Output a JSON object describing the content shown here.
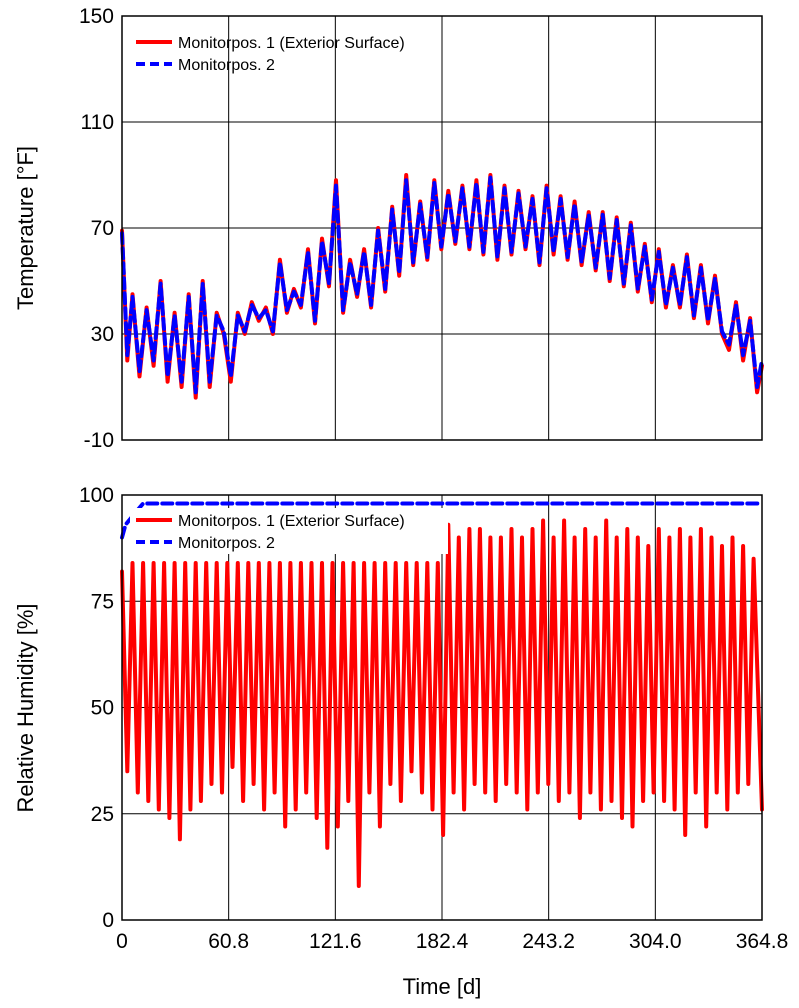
{
  "colors": {
    "series1": "#ff0000",
    "series2": "#0000ff",
    "grid": "#000000",
    "background": "#ffffff"
  },
  "xlabel": "Time [d]",
  "chart_data": [
    {
      "type": "line",
      "xlabel": "",
      "ylabel": "Temperature [°F]",
      "xlim": [
        0,
        364.8
      ],
      "ylim": [
        -10,
        150
      ],
      "xticks": [
        "0",
        "60.8",
        "121.6",
        "182.4",
        "243.2",
        "304.0",
        "364.8"
      ],
      "yticks": [
        "-10",
        "30",
        "70",
        "110",
        "150"
      ],
      "grid": true,
      "legend_position": "top-left",
      "x": [
        0,
        3,
        6,
        10,
        14,
        18,
        22,
        26,
        30,
        34,
        38,
        42,
        46,
        50,
        54,
        58,
        62,
        66,
        70,
        74,
        78,
        82,
        86,
        90,
        94,
        98,
        102,
        106,
        110,
        114,
        118,
        122,
        126,
        130,
        134,
        138,
        142,
        146,
        150,
        154,
        158,
        162,
        166,
        170,
        174,
        178,
        182,
        186,
        190,
        194,
        198,
        202,
        206,
        210,
        214,
        218,
        222,
        226,
        230,
        234,
        238,
        242,
        246,
        250,
        254,
        258,
        262,
        266,
        270,
        274,
        278,
        282,
        286,
        290,
        294,
        298,
        302,
        306,
        310,
        314,
        318,
        322,
        326,
        330,
        334,
        338,
        342,
        346,
        350,
        354,
        358,
        362,
        364.8
      ],
      "series": [
        {
          "name": "Monitorpos. 1 (Exterior Surface)",
          "color": "#ff0000",
          "style": "solid",
          "values": [
            69,
            20,
            45,
            14,
            40,
            18,
            50,
            12,
            38,
            10,
            45,
            6,
            50,
            10,
            38,
            30,
            12,
            38,
            30,
            42,
            35,
            40,
            30,
            58,
            38,
            47,
            40,
            62,
            34,
            66,
            48,
            88,
            38,
            58,
            44,
            62,
            40,
            70,
            46,
            78,
            52,
            90,
            56,
            80,
            58,
            88,
            62,
            84,
            64,
            86,
            62,
            88,
            60,
            90,
            58,
            86,
            60,
            84,
            62,
            82,
            56,
            86,
            60,
            82,
            58,
            80,
            56,
            76,
            54,
            76,
            50,
            74,
            48,
            72,
            46,
            64,
            42,
            62,
            40,
            56,
            40,
            60,
            36,
            56,
            34,
            52,
            30,
            24,
            42,
            20,
            36,
            8,
            18
          ]
        },
        {
          "name": "Monitorpos. 2",
          "color": "#0000ff",
          "style": "dashed",
          "values": [
            68,
            22,
            44,
            16,
            39,
            20,
            49,
            14,
            37,
            12,
            44,
            8,
            49,
            12,
            37,
            31,
            14,
            37,
            31,
            41,
            36,
            39,
            31,
            57,
            39,
            46,
            41,
            61,
            35,
            65,
            49,
            86,
            39,
            57,
            45,
            61,
            41,
            69,
            47,
            77,
            53,
            88,
            57,
            79,
            59,
            87,
            63,
            83,
            65,
            85,
            63,
            87,
            61,
            89,
            59,
            85,
            61,
            83,
            63,
            81,
            57,
            85,
            61,
            81,
            59,
            79,
            57,
            75,
            55,
            75,
            51,
            73,
            49,
            71,
            47,
            63,
            43,
            61,
            41,
            55,
            41,
            59,
            37,
            55,
            35,
            51,
            31,
            26,
            41,
            22,
            35,
            10,
            20
          ]
        }
      ]
    },
    {
      "type": "line",
      "xlabel": "Time [d]",
      "ylabel": "Relative Humidity [%]",
      "xlim": [
        0,
        364.8
      ],
      "ylim": [
        0,
        100
      ],
      "xticks": [
        "0",
        "60.8",
        "121.6",
        "182.4",
        "243.2",
        "304.0",
        "364.8"
      ],
      "yticks": [
        "0",
        "25",
        "50",
        "75",
        "100"
      ],
      "grid": true,
      "legend_position": "top-left",
      "series": [
        {
          "name": "Monitorpos. 1 (Exterior Surface)",
          "color": "#ff0000",
          "style": "solid",
          "x": [
            0,
            3,
            6,
            9,
            12,
            15,
            18,
            21,
            24,
            27,
            30,
            33,
            36,
            39,
            42,
            45,
            48,
            51,
            54,
            57,
            60,
            63,
            66,
            69,
            72,
            75,
            78,
            81,
            84,
            87,
            90,
            93,
            96,
            99,
            102,
            105,
            108,
            111,
            114,
            117,
            120,
            123,
            126,
            129,
            132,
            135,
            138,
            141,
            144,
            147,
            150,
            153,
            156,
            159,
            162,
            165,
            168,
            171,
            174,
            177,
            180,
            183,
            186,
            189,
            192,
            195,
            198,
            201,
            204,
            207,
            210,
            213,
            216,
            219,
            222,
            225,
            228,
            231,
            234,
            237,
            240,
            243,
            246,
            249,
            252,
            255,
            258,
            261,
            264,
            267,
            270,
            273,
            276,
            279,
            282,
            285,
            288,
            291,
            294,
            297,
            300,
            303,
            306,
            309,
            312,
            315,
            318,
            321,
            324,
            327,
            330,
            333,
            336,
            339,
            342,
            345,
            348,
            351,
            354,
            357,
            360,
            364.8
          ],
          "values": [
            82,
            35,
            84,
            30,
            84,
            28,
            84,
            26,
            84,
            24,
            84,
            19,
            84,
            26,
            84,
            28,
            84,
            32,
            84,
            30,
            84,
            36,
            84,
            28,
            84,
            32,
            84,
            26,
            84,
            30,
            84,
            22,
            84,
            26,
            84,
            30,
            84,
            24,
            84,
            17,
            84,
            22,
            84,
            28,
            84,
            8,
            84,
            30,
            84,
            22,
            84,
            32,
            84,
            28,
            84,
            35,
            84,
            30,
            84,
            26,
            84,
            20,
            93,
            30,
            90,
            26,
            92,
            32,
            92,
            30,
            90,
            28,
            90,
            32,
            92,
            30,
            90,
            26,
            92,
            30,
            94,
            32,
            90,
            28,
            94,
            30,
            90,
            24,
            92,
            30,
            90,
            26,
            94,
            28,
            90,
            24,
            92,
            22,
            90,
            28,
            88,
            30,
            92,
            28,
            90,
            26,
            92,
            20,
            90,
            30,
            92,
            22,
            90,
            30,
            88,
            26,
            90,
            30,
            88,
            32,
            85,
            26
          ]
        },
        {
          "name": "Monitorpos. 2",
          "color": "#0000ff",
          "style": "dashed",
          "x": [
            0,
            2,
            4,
            6,
            8,
            10,
            12,
            14,
            16,
            18,
            20,
            22,
            24,
            26,
            28,
            30,
            32,
            34,
            36,
            38,
            40,
            42,
            44,
            46,
            48,
            50,
            52,
            54,
            56,
            58,
            60,
            62,
            64,
            66,
            68,
            70,
            72,
            74,
            76,
            78,
            80,
            82,
            84,
            86,
            88,
            90,
            92,
            94,
            96,
            98,
            100,
            102,
            104,
            106,
            108,
            110,
            112,
            114,
            116,
            118,
            120,
            122,
            124,
            126,
            128,
            130,
            132,
            134,
            136,
            138,
            140,
            142,
            144,
            146,
            148,
            150,
            152,
            154,
            156,
            158,
            160,
            162,
            164,
            166,
            168,
            170,
            172,
            174,
            176,
            178,
            180,
            182,
            184,
            186,
            188,
            190,
            192,
            194,
            196,
            198,
            200,
            202,
            204,
            206,
            208,
            210,
            212,
            214,
            216,
            218,
            220,
            222,
            224,
            226,
            228,
            230,
            232,
            234,
            236,
            238,
            240,
            242,
            244,
            246,
            248,
            250,
            252,
            254,
            256,
            258,
            260,
            262,
            264,
            266,
            268,
            270,
            272,
            274,
            276,
            278,
            280,
            282,
            284,
            286,
            288,
            290,
            292,
            294,
            296,
            298,
            300,
            302,
            304,
            306,
            308,
            310,
            312,
            314,
            316,
            318,
            320,
            322,
            324,
            326,
            328,
            330,
            332,
            334,
            336,
            338,
            340,
            342,
            344,
            346,
            348,
            350,
            352,
            354,
            356,
            358,
            360,
            362,
            364.8
          ],
          "values": [
            90,
            93,
            94,
            95,
            96,
            97,
            98,
            98,
            98,
            98,
            98,
            98,
            98,
            98,
            98,
            98,
            98,
            98,
            98,
            98,
            98,
            98,
            98,
            98,
            98,
            98,
            98,
            98,
            98,
            98,
            98,
            98,
            98,
            98,
            98,
            98,
            98,
            98,
            98,
            98,
            98,
            98,
            98,
            98,
            98,
            98,
            98,
            98,
            98,
            98,
            98,
            98,
            98,
            98,
            98,
            98,
            98,
            98,
            98,
            98,
            98,
            98,
            98,
            98,
            98,
            98,
            98,
            98,
            98,
            98,
            98,
            98,
            98,
            98,
            98,
            98,
            98,
            98,
            98,
            98,
            98,
            98,
            98,
            98,
            98,
            98,
            98,
            98,
            98,
            98,
            98,
            98,
            98,
            98,
            98,
            98,
            98,
            98,
            98,
            98,
            98,
            98,
            98,
            98,
            98,
            98,
            98,
            98,
            98,
            98,
            98,
            98,
            98,
            98,
            98,
            98,
            98,
            98,
            98,
            98,
            98,
            98,
            98,
            98,
            98,
            98,
            98,
            98,
            98,
            98,
            98,
            98,
            98,
            98,
            98,
            98,
            98,
            98,
            98,
            98,
            98,
            98,
            98,
            98,
            98,
            98,
            98,
            98,
            98,
            98,
            98,
            98,
            98,
            98,
            98,
            98,
            98,
            98,
            98,
            98,
            98,
            98,
            98,
            98,
            98,
            98,
            98,
            98,
            98,
            98,
            98,
            98,
            98,
            98,
            98,
            98,
            98,
            98,
            98,
            98,
            98,
            98,
            98
          ]
        }
      ]
    }
  ]
}
